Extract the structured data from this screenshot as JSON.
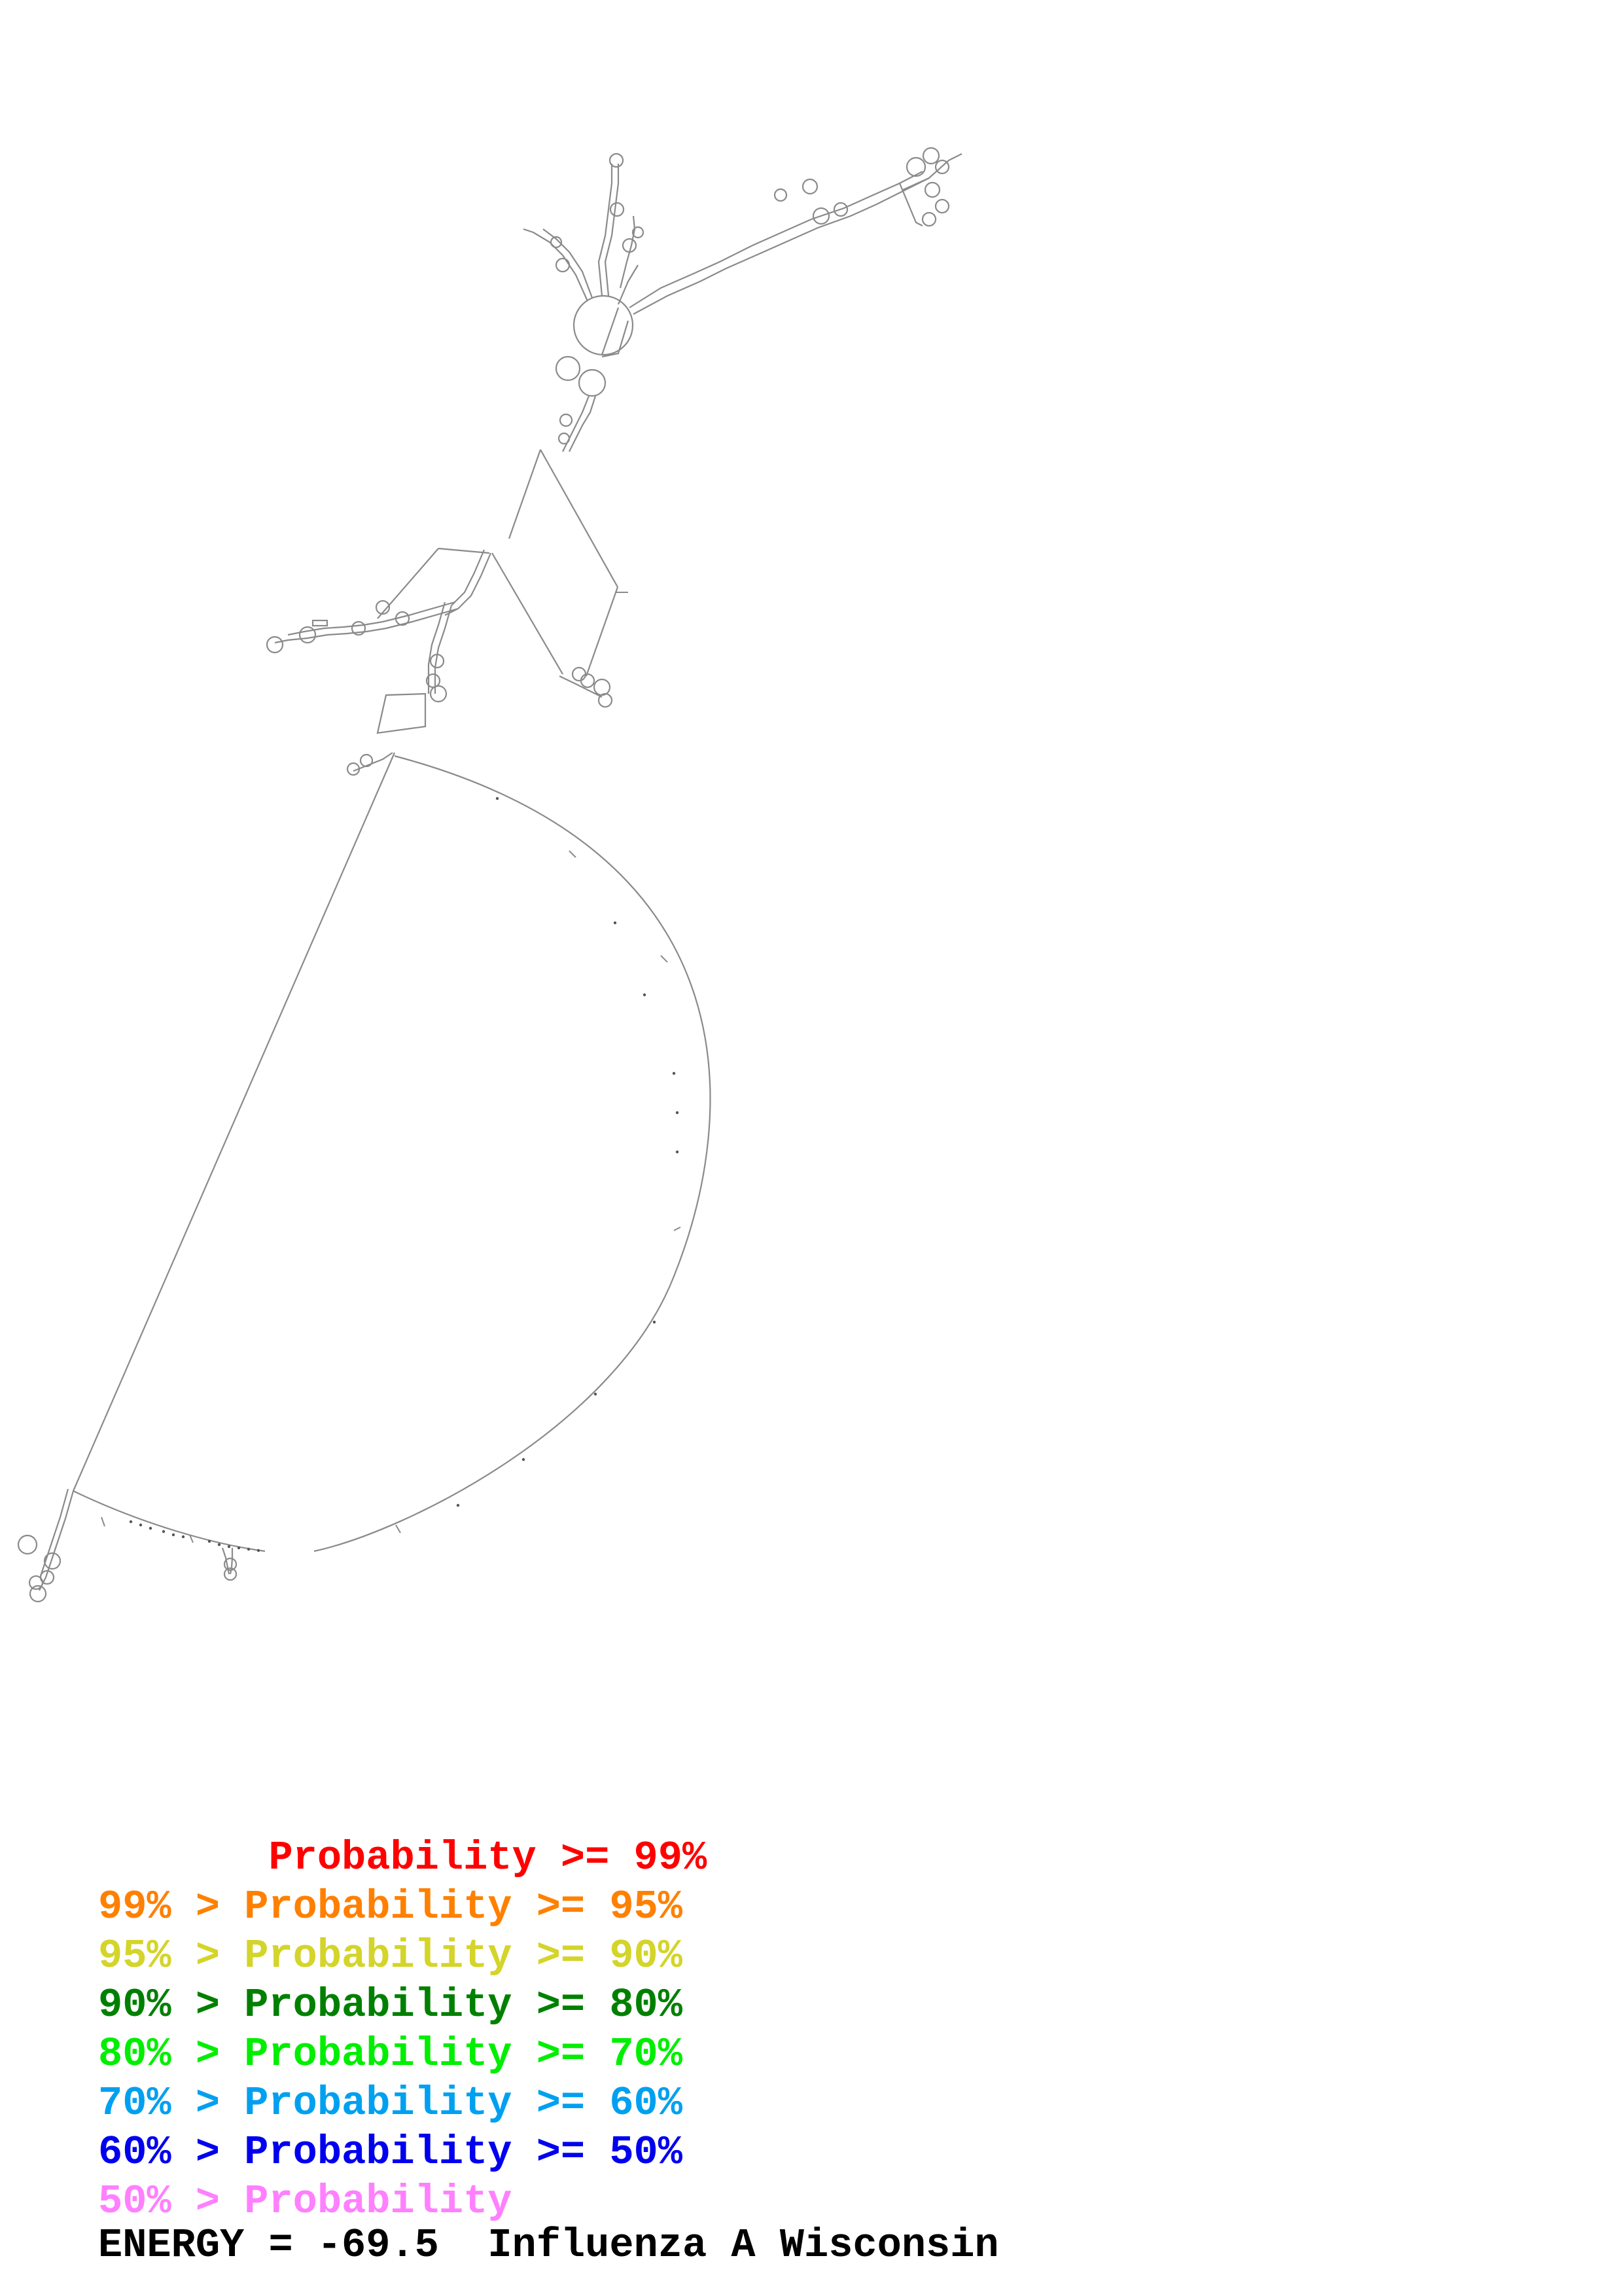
{
  "structure": {
    "kind": "RNA secondary structure",
    "line_color": "#888888",
    "base_color": "#444444"
  },
  "legend": [
    {
      "text": "       Probability >= 99%",
      "color": "#ff0000"
    },
    {
      "text": "99% > Probability >= 95%",
      "color": "#ff8000"
    },
    {
      "text": "95% > Probability >= 90%",
      "color": "#d4d42a"
    },
    {
      "text": "90% > Probability >= 80%",
      "color": "#008000"
    },
    {
      "text": "80% > Probability >= 70%",
      "color": "#00ee00"
    },
    {
      "text": "70% > Probability >= 60%",
      "color": "#00a0f0"
    },
    {
      "text": "60% > Probability >= 50%",
      "color": "#0000ee"
    },
    {
      "text": "50% > Probability",
      "color": "#ff80ff"
    }
  ],
  "footer": {
    "energy_label": "ENERGY = -69.5",
    "name": "Influenza A Wisconsin"
  }
}
